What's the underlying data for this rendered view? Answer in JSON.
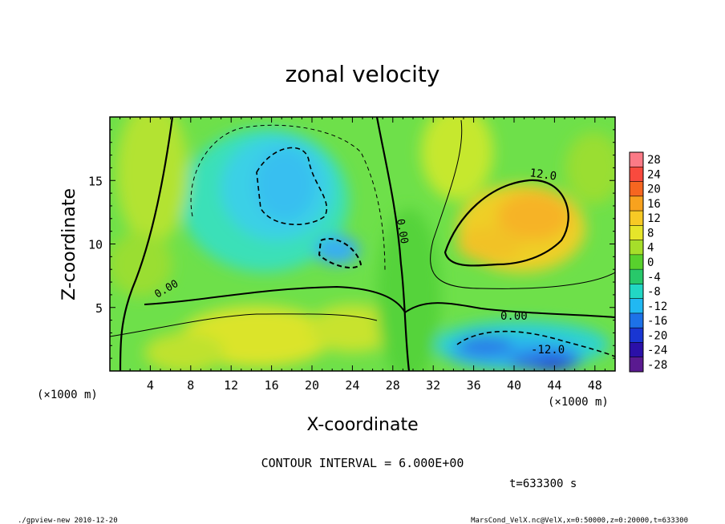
{
  "chart_data": {
    "type": "heatmap",
    "title": "zonal velocity",
    "xlabel": "X-coordinate",
    "ylabel": "Z-coordinate",
    "x_unit": "(×1000 m)",
    "y_unit": "(×1000 m)",
    "xlim": [
      0,
      50
    ],
    "ylim": [
      0,
      20
    ],
    "x_ticks": [
      4,
      8,
      12,
      16,
      20,
      24,
      28,
      32,
      36,
      40,
      44,
      48
    ],
    "y_ticks": [
      5,
      10,
      15
    ],
    "colorbar": {
      "levels": [
        28,
        24,
        20,
        16,
        12,
        8,
        4,
        0,
        -4,
        -8,
        -12,
        -16,
        -20,
        -24,
        -28
      ],
      "colors": [
        "#fb7a86",
        "#f94a3e",
        "#f66620",
        "#f8a21e",
        "#f7c925",
        "#e6e52a",
        "#a6de2a",
        "#58d12d",
        "#28c86a",
        "#22d7c4",
        "#21b8f2",
        "#1d72e8",
        "#1936d2",
        "#2b10a8",
        "#5a1a90"
      ]
    },
    "contour_labels": [
      "12.0",
      "0.00",
      "0.00",
      "0.00",
      "-12.0"
    ],
    "contour_interval": "CONTOUR INTERVAL = 6.000E+00",
    "time": "t=633300 s"
  },
  "footer": {
    "left": "./gpview-new  2010-12-20",
    "right": "MarsCond_VelX.nc@VelX,x=0:50000,z=0:20000,t=633300"
  }
}
